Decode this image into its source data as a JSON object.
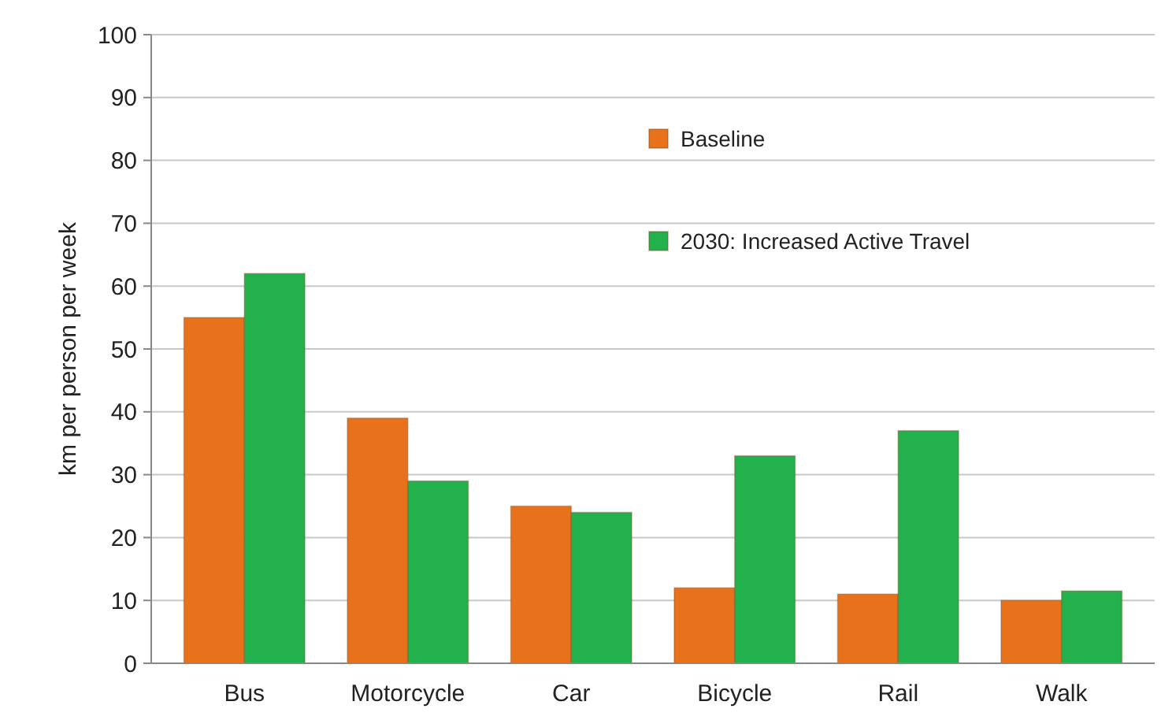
{
  "chart_data": {
    "type": "bar",
    "ylabel": "km per person per week",
    "categories": [
      "Bus",
      "Motorcycle",
      "Car",
      "Bicycle",
      "Rail",
      "Walk"
    ],
    "series": [
      {
        "name": "Baseline",
        "color": "#e8711c",
        "values": [
          55,
          39,
          25,
          12,
          11,
          10
        ]
      },
      {
        "name": "2030: Increased Active Travel",
        "color": "#22b14c",
        "values": [
          62,
          29,
          24,
          33,
          37,
          11.5
        ]
      }
    ],
    "ylim": [
      0,
      100
    ],
    "yticks": [
      0,
      10,
      20,
      30,
      40,
      50,
      60,
      70,
      80,
      90,
      100
    ],
    "grid": "y",
    "legend": "top right"
  }
}
